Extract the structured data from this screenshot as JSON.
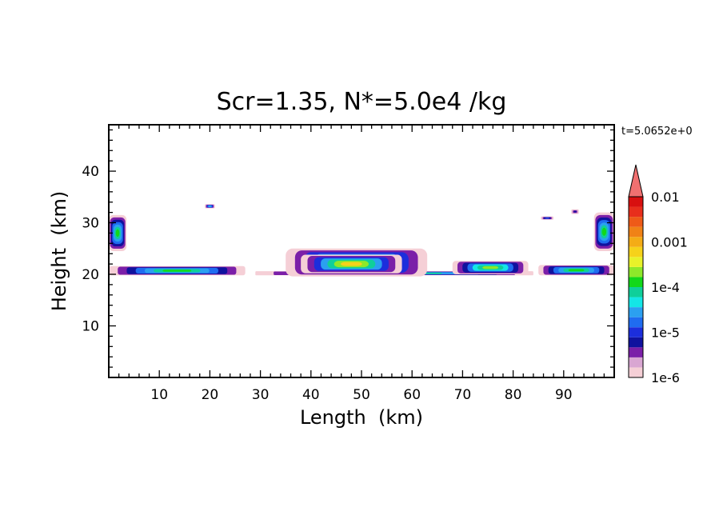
{
  "chart_data": {
    "type": "heatmap",
    "title": "Scr=1.35, N*=5.0e4 /kg",
    "time_label": "t=5.0652e+0",
    "xlabel": "Length  (km)",
    "ylabel": "Height  (km)",
    "xlim": [
      0,
      100
    ],
    "ylim": [
      0,
      49
    ],
    "x_ticks": [
      "10",
      "20",
      "30",
      "40",
      "50",
      "60",
      "70",
      "80",
      "90"
    ],
    "y_ticks": [
      "10",
      "20",
      "30",
      "40"
    ],
    "colorbar": {
      "scale": "log",
      "labels": [
        "0.01",
        "0.001",
        "1e-4",
        "1e-5",
        "1e-6"
      ],
      "colors": [
        "#f5cfd6",
        "#d9a6d2",
        "#7b1fa8",
        "#10129e",
        "#1c2edc",
        "#1f6cf0",
        "#2ba0f0",
        "#14e6e6",
        "#0fcf9a",
        "#12d81a",
        "#8ee82a",
        "#e8f22a",
        "#f6d21a",
        "#f4ac16",
        "#f08216",
        "#ee5a18",
        "#e82e1c",
        "#d81010"
      ],
      "extend_top_color": "#f07070"
    },
    "regions": [
      {
        "name": "base-layer-left",
        "x": [
          0,
          27
        ],
        "y": [
          19.8,
          21.6
        ],
        "level": 9
      },
      {
        "name": "base-layer-mid",
        "x": [
          29,
          84
        ],
        "y": [
          19.8,
          20.6
        ],
        "level": 9
      },
      {
        "name": "base-layer-right",
        "x": [
          85,
          100
        ],
        "y": [
          19.8,
          21.8
        ],
        "level": 9
      },
      {
        "name": "cloud-core",
        "x": [
          35,
          63
        ],
        "y": [
          19.6,
          25.0
        ],
        "level": 11
      },
      {
        "name": "cloud-core-inner",
        "x": [
          38,
          58
        ],
        "y": [
          20.2,
          23.8
        ],
        "level": 12
      },
      {
        "name": "patch-right-70-83",
        "x": [
          68,
          83
        ],
        "y": [
          20.0,
          22.6
        ],
        "level": 10
      },
      {
        "name": "column-left-edge",
        "x": [
          0,
          3.5
        ],
        "y": [
          24.5,
          31.5
        ],
        "level": 9
      },
      {
        "name": "column-right-edge",
        "x": [
          96,
          100
        ],
        "y": [
          24.5,
          32.0
        ],
        "level": 9
      },
      {
        "name": "blob-20km",
        "x": [
          19,
          21
        ],
        "y": [
          32.8,
          33.6
        ],
        "level": 7
      },
      {
        "name": "blob-87km",
        "x": [
          85.5,
          88
        ],
        "y": [
          30.6,
          31.2
        ],
        "level": 5
      },
      {
        "name": "blob-92km",
        "x": [
          91.5,
          93
        ],
        "y": [
          31.7,
          32.6
        ],
        "level": 3
      }
    ]
  }
}
